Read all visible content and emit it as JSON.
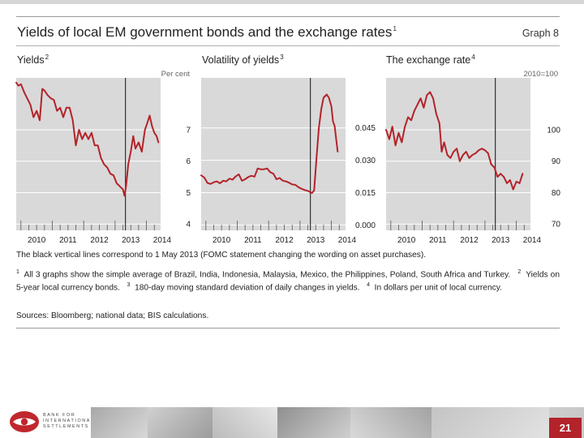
{
  "header": {
    "title": "Yields of local EM government bonds and the exchange rates",
    "title_note": "1",
    "graph_label": "Graph 8"
  },
  "colors": {
    "line": "#b3232a",
    "panel_bg": "#d9d9d9",
    "vline": "#222222",
    "accent": "#b3232a"
  },
  "chart_data": [
    {
      "type": "line",
      "title": "Yields",
      "title_note": "2",
      "unit_label": "Per cent",
      "x_range": [
        2009.85,
        2014.45
      ],
      "ylim": [
        3.8,
        8.65
      ],
      "yticks": [
        4,
        5,
        6,
        7
      ],
      "ytick_labels": [
        "4",
        "5",
        "6",
        "7"
      ],
      "xticks": [
        2010,
        2011,
        2012,
        2013,
        2014
      ],
      "xtick_labels": [
        "2010",
        "2011",
        "2012",
        "2013",
        "2014"
      ],
      "vline_x": 2013.33,
      "series": [
        {
          "name": "Yields",
          "x": [
            2009.85,
            2009.92,
            2010.0,
            2010.1,
            2010.2,
            2010.3,
            2010.4,
            2010.5,
            2010.6,
            2010.68,
            2010.75,
            2010.85,
            2010.95,
            2011.05,
            2011.15,
            2011.25,
            2011.35,
            2011.45,
            2011.55,
            2011.65,
            2011.75,
            2011.85,
            2011.95,
            2012.05,
            2012.15,
            2012.25,
            2012.35,
            2012.45,
            2012.55,
            2012.65,
            2012.75,
            2012.85,
            2012.95,
            2013.05,
            2013.15,
            2013.25,
            2013.3,
            2013.35,
            2013.42,
            2013.5,
            2013.58,
            2013.65,
            2013.75,
            2013.85,
            2013.95,
            2014.02,
            2014.1,
            2014.18,
            2014.25,
            2014.32,
            2014.38
          ],
          "y": [
            8.5,
            8.4,
            8.45,
            8.2,
            8.0,
            7.8,
            7.4,
            7.6,
            7.3,
            8.3,
            8.25,
            8.1,
            8.0,
            7.95,
            7.6,
            7.7,
            7.4,
            7.7,
            7.7,
            7.3,
            6.5,
            7.0,
            6.7,
            6.9,
            6.7,
            6.9,
            6.5,
            6.5,
            6.1,
            5.9,
            5.8,
            5.6,
            5.55,
            5.3,
            5.2,
            5.1,
            4.9,
            5.2,
            5.9,
            6.3,
            6.8,
            6.4,
            6.6,
            6.3,
            7.0,
            7.2,
            7.45,
            7.1,
            6.9,
            6.8,
            6.6
          ]
        }
      ]
    },
    {
      "type": "line",
      "title": "Volatility of yields",
      "title_note": "3",
      "unit_label": "",
      "x_range": [
        2009.85,
        2014.45
      ],
      "ylim": [
        -0.0025,
        0.0682
      ],
      "yticks": [
        0.0,
        0.015,
        0.03,
        0.045
      ],
      "ytick_labels": [
        "0.000",
        "0.015",
        "0.030",
        "0.045"
      ],
      "xticks": [
        2010,
        2011,
        2012,
        2013,
        2014
      ],
      "xtick_labels": [
        "2010",
        "2011",
        "2012",
        "2013",
        "2014"
      ],
      "vline_x": 2013.33,
      "series": [
        {
          "name": "Volatility",
          "x": [
            2009.85,
            2009.95,
            2010.05,
            2010.15,
            2010.25,
            2010.35,
            2010.45,
            2010.55,
            2010.65,
            2010.75,
            2010.85,
            2010.95,
            2011.05,
            2011.15,
            2011.25,
            2011.35,
            2011.45,
            2011.55,
            2011.65,
            2011.75,
            2011.85,
            2011.95,
            2012.05,
            2012.15,
            2012.25,
            2012.35,
            2012.45,
            2012.55,
            2012.65,
            2012.75,
            2012.85,
            2012.95,
            2013.05,
            2013.15,
            2013.25,
            2013.32,
            2013.38,
            2013.45,
            2013.52,
            2013.6,
            2013.68,
            2013.75,
            2013.85,
            2013.92,
            2014.0,
            2014.05,
            2014.1,
            2014.15,
            2014.2
          ],
          "y": [
            0.023,
            0.022,
            0.0195,
            0.019,
            0.0198,
            0.0202,
            0.0193,
            0.0205,
            0.0202,
            0.0215,
            0.021,
            0.0225,
            0.0235,
            0.0205,
            0.0212,
            0.0222,
            0.0228,
            0.0224,
            0.0262,
            0.0258,
            0.0258,
            0.0262,
            0.0245,
            0.0238,
            0.0212,
            0.0218,
            0.0205,
            0.0202,
            0.0196,
            0.0188,
            0.0186,
            0.0175,
            0.0168,
            0.0162,
            0.0158,
            0.0152,
            0.0148,
            0.016,
            0.03,
            0.045,
            0.054,
            0.059,
            0.0605,
            0.059,
            0.055,
            0.048,
            0.046,
            0.04,
            0.034
          ]
        }
      ]
    },
    {
      "type": "line",
      "title": "The exchange rate",
      "title_note": "4",
      "unit_label": "2010=100",
      "x_range": [
        2009.85,
        2014.45
      ],
      "ylim": [
        68.0,
        116.5
      ],
      "yticks": [
        70,
        80,
        90,
        100
      ],
      "ytick_labels": [
        "70",
        "80",
        "90",
        "100"
      ],
      "xticks": [
        2010,
        2011,
        2012,
        2013,
        2014
      ],
      "xtick_labels": [
        "2010",
        "2011",
        "2012",
        "2013",
        "2014"
      ],
      "vline_x": 2013.33,
      "series": [
        {
          "name": "Exchange rate",
          "x": [
            2009.85,
            2009.95,
            2010.05,
            2010.15,
            2010.25,
            2010.35,
            2010.45,
            2010.55,
            2010.65,
            2010.75,
            2010.85,
            2010.95,
            2011.05,
            2011.15,
            2011.25,
            2011.35,
            2011.45,
            2011.55,
            2011.62,
            2011.7,
            2011.8,
            2011.9,
            2012.0,
            2012.1,
            2012.2,
            2012.3,
            2012.4,
            2012.5,
            2012.6,
            2012.7,
            2012.8,
            2012.9,
            2013.0,
            2013.1,
            2013.2,
            2013.3,
            2013.4,
            2013.5,
            2013.6,
            2013.7,
            2013.8,
            2013.9,
            2014.0,
            2014.1,
            2014.2
          ],
          "y": [
            100,
            97,
            101,
            95,
            99,
            96,
            101,
            104,
            103,
            106,
            108,
            110,
            107,
            111,
            112,
            110,
            105,
            102,
            93,
            96,
            92,
            91,
            93,
            94,
            90,
            92,
            93,
            91,
            92,
            92.5,
            93.5,
            94,
            93.5,
            92.5,
            89,
            88,
            85,
            86,
            85,
            83,
            84,
            81,
            83.5,
            83,
            86
          ]
        }
      ]
    }
  ],
  "notes": {
    "vline_note": "The black vertical lines correspond to 1 May 2013 (FOMC statement changing the wording on asset purchases).",
    "f1_mark": "1",
    "f1_text": "All 3 graphs show the simple average of Brazil, India, Indonesia, Malaysia, Mexico, the Philippines, Poland, South Africa and Turkey.",
    "f2_mark": "2",
    "f2_text": "Yields on 5-year local currency bonds.",
    "f3_mark": "3",
    "f3_text": "180-day moving standard deviation of daily changes in yields.",
    "f4_mark": "4",
    "f4_text": "In dollars per unit of local currency.",
    "sources": "Sources: Bloomberg; national data; BIS calculations."
  },
  "footer": {
    "logo_lines": [
      "BANK FOR",
      "INTERNATIONAL",
      "SETTLEMENTS"
    ],
    "page_number": "21"
  }
}
